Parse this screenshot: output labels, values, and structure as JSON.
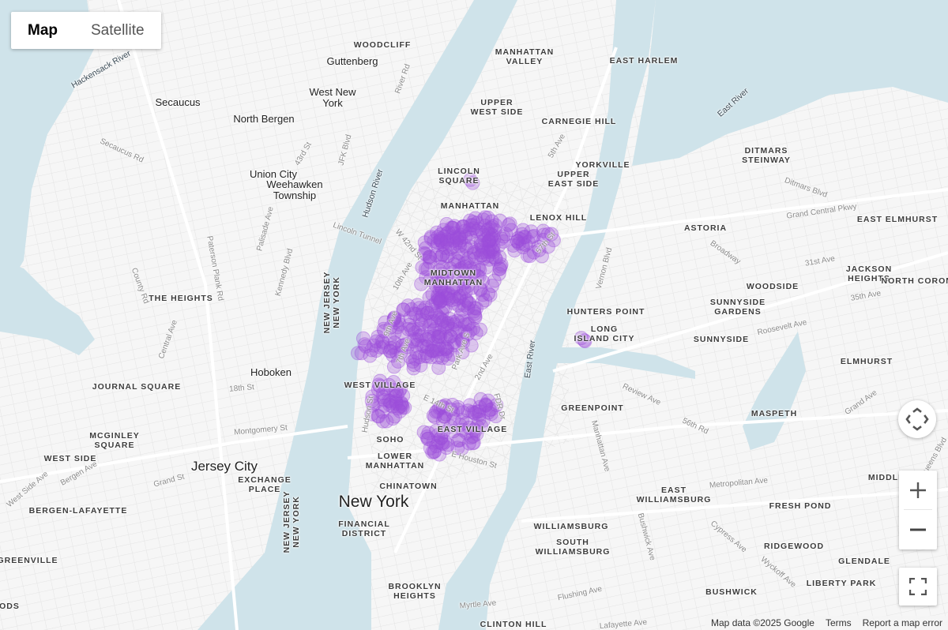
{
  "map_type_control": {
    "map_label": "Map",
    "satellite_label": "Satellite",
    "selected": "Map"
  },
  "colors": {
    "water": "#cfe3ea",
    "land": "#f6f6f6",
    "heat_point": "#9b4ddb",
    "heat_opacity": 0.42
  },
  "neighborhoods": [
    "WOODCLIFF",
    "MANHATTAN\nVALLEY",
    "EAST HARLEM",
    "UPPER\nWEST SIDE",
    "CARNEGIE HILL",
    "DITMARS\nSTEINWAY",
    "LINCOLN\nSQUARE",
    "YORKVILLE",
    "UPPER\nEAST SIDE",
    "LENOX HILL",
    "ASTORIA",
    "EAST ELMHURST",
    "MIDTOWN\nMANHATTAN",
    "JACKSON\nHEIGHTS",
    "NORTH CORONA",
    "WOODSIDE",
    "THE HEIGHTS",
    "SUNNYSIDE\nGARDENS",
    "HUNTERS POINT",
    "LONG\nISLAND CITY",
    "SUNNYSIDE",
    "ELMHURST",
    "WEST VILLAGE",
    "JOURNAL SQUARE",
    "GREENPOINT",
    "MASPETH",
    "EAST VILLAGE",
    "MCGINLEY\nSQUARE",
    "SOHO",
    "WEST SIDE",
    "LOWER\nMANHATTAN",
    "CHINATOWN",
    "EXCHANGE\nPLACE",
    "MIDDLE",
    "EAST\nWILLIAMSBURG",
    "FRESH POND",
    "BERGEN-LAFAYETTE",
    "FINANCIAL\nDISTRICT",
    "WILLIAMSBURG",
    "SOUTH\nWILLIAMSBURG",
    "RIDGEWOOD",
    "GLENDALE",
    "GREENVILLE",
    "LIBERTY PARK",
    "BUSHWICK",
    "BROOKLYN\nHEIGHTS",
    "CLINTON HILL",
    "ODS"
  ],
  "cities": [
    "Guttenberg",
    "West New\nYork",
    "Secaucus",
    "North Bergen",
    "Union City",
    "Weehawken\nTownship",
    "Hoboken"
  ],
  "major_cities": {
    "jersey_city": "Jersey City",
    "new_york": "New York",
    "manhattan": "MANHATTAN"
  },
  "water_labels": {
    "hudson": "Hudson River",
    "east_river": "East River",
    "east_river_north": "East River",
    "hackensack": "Hackensack River",
    "state_line": "NEW JERSEY\nNEW YORK",
    "state_line_south": "NEW JERSEY\nNEW YORK"
  },
  "streets": [
    "Lincoln Tunnel",
    "Grand Central Pkwy",
    "Broadway",
    "Metropolitan Ave",
    "Grand Ave",
    "Roosevelt Ave",
    "Queens Blvd",
    "Flushing Ave",
    "Myrtle Ave",
    "Lafayette Ave",
    "FDR Dr",
    "Paterson Plank Rd",
    "Palisade Ave",
    "Kennedy Blvd",
    "JFK Blvd",
    "Secaucus Rd",
    "County Rd",
    "Central Ave",
    "18th St",
    "Grand St",
    "Bergen Ave",
    "Vernon Blvd",
    "Cypress Ave",
    "Wyckoff Ave",
    "Bushwick Ave",
    "Manhattan Ave",
    "E Houston St",
    "Hudson St",
    "5th Ave",
    "2nd Ave",
    "7th Ave",
    "10th Ave",
    "9th Ave",
    "Park Ave S",
    "E 14th St",
    "W 42nd St",
    "57th St",
    "Review Ave",
    "56th Rd",
    "35th Ave",
    "31st Ave",
    "Ditmars Blvd",
    "River Rd",
    "43rd St",
    "West Side Ave",
    "Montgomery St"
  ],
  "controls": {
    "camera_icon": "camera-control-icon",
    "zoom_in": "+",
    "zoom_out": "−",
    "fullscreen_icon": "fullscreen-icon"
  },
  "attribution": {
    "map_data": "Map data ©2025 Google",
    "terms": "Terms",
    "report": "Report a map error"
  }
}
